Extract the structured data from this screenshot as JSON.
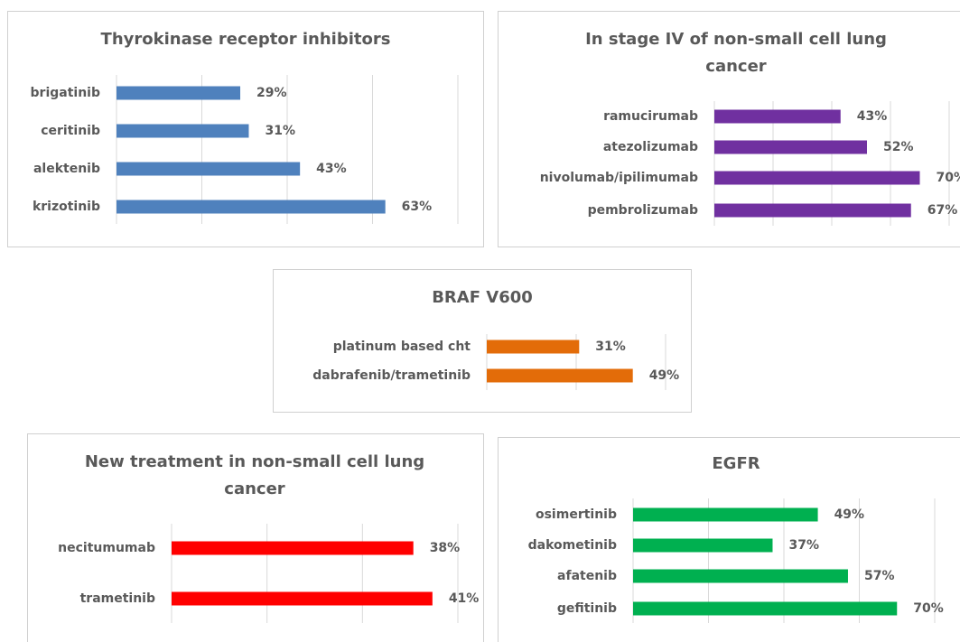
{
  "chart_data": [
    {
      "type": "bar",
      "title": "Thyrokinase receptor inhibitors",
      "categories": [
        "brigatinib",
        "ceritinib",
        "alektenib",
        "krizotinib"
      ],
      "values": [
        29,
        31,
        43,
        63
      ],
      "value_labels": [
        "29%",
        "31%",
        "43%",
        "63%"
      ],
      "color": "#4f81bd",
      "xlim": [
        0,
        80
      ],
      "xticks": [
        0,
        20,
        40,
        60,
        80
      ],
      "grid": true
    },
    {
      "type": "bar",
      "title": "In stage IV of non-small cell lung cancer",
      "categories": [
        "ramucirumab",
        "atezolizumab",
        "nivolumab/ipilimumab",
        "pembrolizumab"
      ],
      "values": [
        43,
        52,
        70,
        67
      ],
      "value_labels": [
        "43%",
        "52%",
        "70%",
        "67%"
      ],
      "color": "#7030a0",
      "xlim": [
        0,
        80
      ],
      "xticks": [
        0,
        20,
        40,
        60,
        80
      ],
      "grid": true
    },
    {
      "type": "bar",
      "title": "BRAF V600",
      "categories": [
        "platinum based cht",
        "dabrafenib/trametinib"
      ],
      "values": [
        31,
        49
      ],
      "value_labels": [
        "31%",
        "49%"
      ],
      "color": "#e36c09",
      "xlim": [
        0,
        60
      ],
      "xticks": [
        0,
        30,
        60
      ],
      "grid": true
    },
    {
      "type": "bar",
      "title": "New treatment in non-small cell lung cancer",
      "categories": [
        "necitumumab",
        "trametinib"
      ],
      "values": [
        38,
        41
      ],
      "value_labels": [
        "38%",
        "41%"
      ],
      "color": "#ff0000",
      "xlim": [
        0,
        45
      ],
      "xticks": [
        0,
        15,
        30,
        45
      ],
      "grid": true
    },
    {
      "type": "bar",
      "title": "EGFR",
      "categories": [
        "osimertinib",
        "dakometinib",
        "afatenib",
        "gefitinib"
      ],
      "values": [
        49,
        37,
        57,
        70
      ],
      "value_labels": [
        "49%",
        "37%",
        "57%",
        "70%"
      ],
      "color": "#00b050",
      "xlim": [
        0,
        80
      ],
      "xticks": [
        0,
        20,
        40,
        60,
        80
      ],
      "grid": true
    }
  ]
}
